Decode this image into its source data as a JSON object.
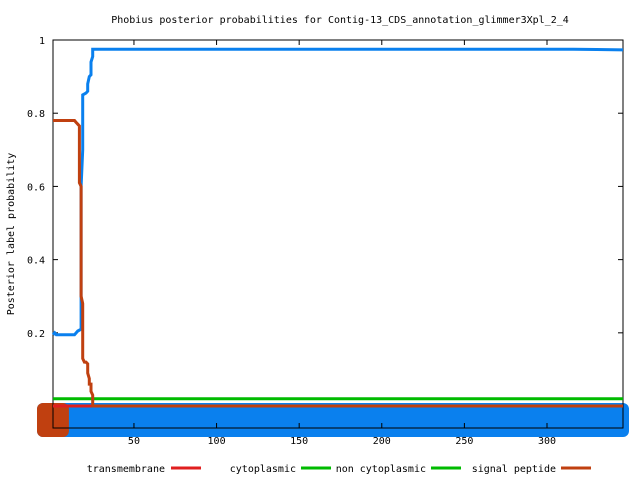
{
  "chart_data": {
    "type": "line",
    "title": "Phobius posterior probabilities for Contig-13_CDS_annotation_glimmer3Xpl_2_4",
    "xlabel": "",
    "ylabel": "Posterior label probability",
    "xlim": [
      1,
      346
    ],
    "ylim": [
      -0.06,
      1.0
    ],
    "x_ticks": [
      50,
      100,
      150,
      200,
      250,
      300
    ],
    "y_ticks": [
      0.2,
      0.4,
      0.6,
      0.8,
      1
    ],
    "grid": false,
    "legend_position": "bottom",
    "series": [
      {
        "name": "transmembrane",
        "color": "#e01f1f",
        "points": [
          [
            1,
            0.0
          ],
          [
            10,
            0.0
          ],
          [
            30,
            0.0
          ],
          [
            346,
            0.0
          ]
        ]
      },
      {
        "name": "cytoplasmic",
        "color": "#00bb00",
        "points": []
      },
      {
        "name": "non cytoplasmic",
        "color": "#00bb00",
        "points": [
          [
            1,
            0.02
          ],
          [
            346,
            0.02
          ]
        ]
      },
      {
        "name": "signal peptide",
        "color": "#0a80ee",
        "points": [
          [
            1,
            0.195
          ],
          [
            2,
            0.2
          ],
          [
            3,
            0.195
          ],
          [
            14,
            0.195
          ],
          [
            16,
            0.205
          ],
          [
            18,
            0.21
          ],
          [
            18,
            0.6
          ],
          [
            19,
            0.7
          ],
          [
            19,
            0.85
          ],
          [
            21,
            0.855
          ],
          [
            22,
            0.86
          ],
          [
            22,
            0.88
          ],
          [
            23,
            0.9
          ],
          [
            24,
            0.905
          ],
          [
            24,
            0.94
          ],
          [
            25,
            0.955
          ],
          [
            25,
            0.975
          ],
          [
            100,
            0.975
          ],
          [
            200,
            0.975
          ],
          [
            316,
            0.975
          ],
          [
            330,
            0.974
          ],
          [
            346,
            0.973
          ]
        ]
      },
      {
        "name": "signal peptide",
        "color": "#c04010",
        "points": [
          [
            1,
            0.78
          ],
          [
            14,
            0.78
          ],
          [
            15,
            0.775
          ],
          [
            16,
            0.77
          ],
          [
            17,
            0.765
          ],
          [
            17,
            0.61
          ],
          [
            18,
            0.6
          ],
          [
            18,
            0.3
          ],
          [
            19,
            0.28
          ],
          [
            19,
            0.13
          ],
          [
            20,
            0.12
          ],
          [
            21,
            0.12
          ],
          [
            22,
            0.115
          ],
          [
            22,
            0.09
          ],
          [
            23,
            0.075
          ],
          [
            23,
            0.06
          ],
          [
            24,
            0.06
          ],
          [
            24,
            0.04
          ],
          [
            25,
            0.03
          ],
          [
            25,
            0.0
          ],
          [
            100,
            0.0
          ],
          [
            346,
            0.0
          ]
        ]
      }
    ],
    "band_series": [
      {
        "name": "signal peptide",
        "color": "#0a80ee",
        "x_range": [
          1,
          346
        ]
      },
      {
        "name": "signal peptide",
        "color": "#c04010",
        "x_range": [
          1,
          7
        ]
      }
    ]
  }
}
